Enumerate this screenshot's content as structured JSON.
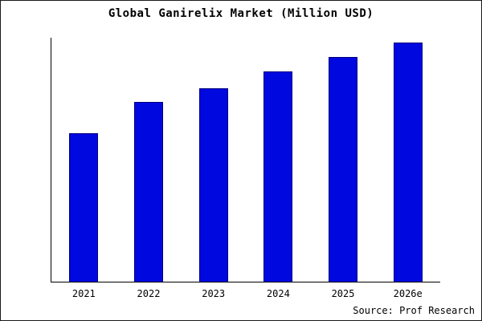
{
  "title": "Global Ganirelix Market (Million USD)",
  "source": "Source: Prof Research",
  "colors": {
    "bar_fill": "#0008e0",
    "bar_border": "#000080",
    "axis": "#000000",
    "background": "#ffffff"
  },
  "chart_data": {
    "type": "bar",
    "categories": [
      "2021",
      "2022",
      "2023",
      "2024",
      "2025",
      "2026e"
    ],
    "values": [
      62,
      75,
      81,
      88,
      94,
      100
    ],
    "title": "Global Ganirelix Market (Million USD)",
    "xlabel": "",
    "ylabel": "",
    "ylim": [
      0,
      102
    ],
    "grid": false,
    "legend": false,
    "source_caption": "Source: Prof Research"
  }
}
